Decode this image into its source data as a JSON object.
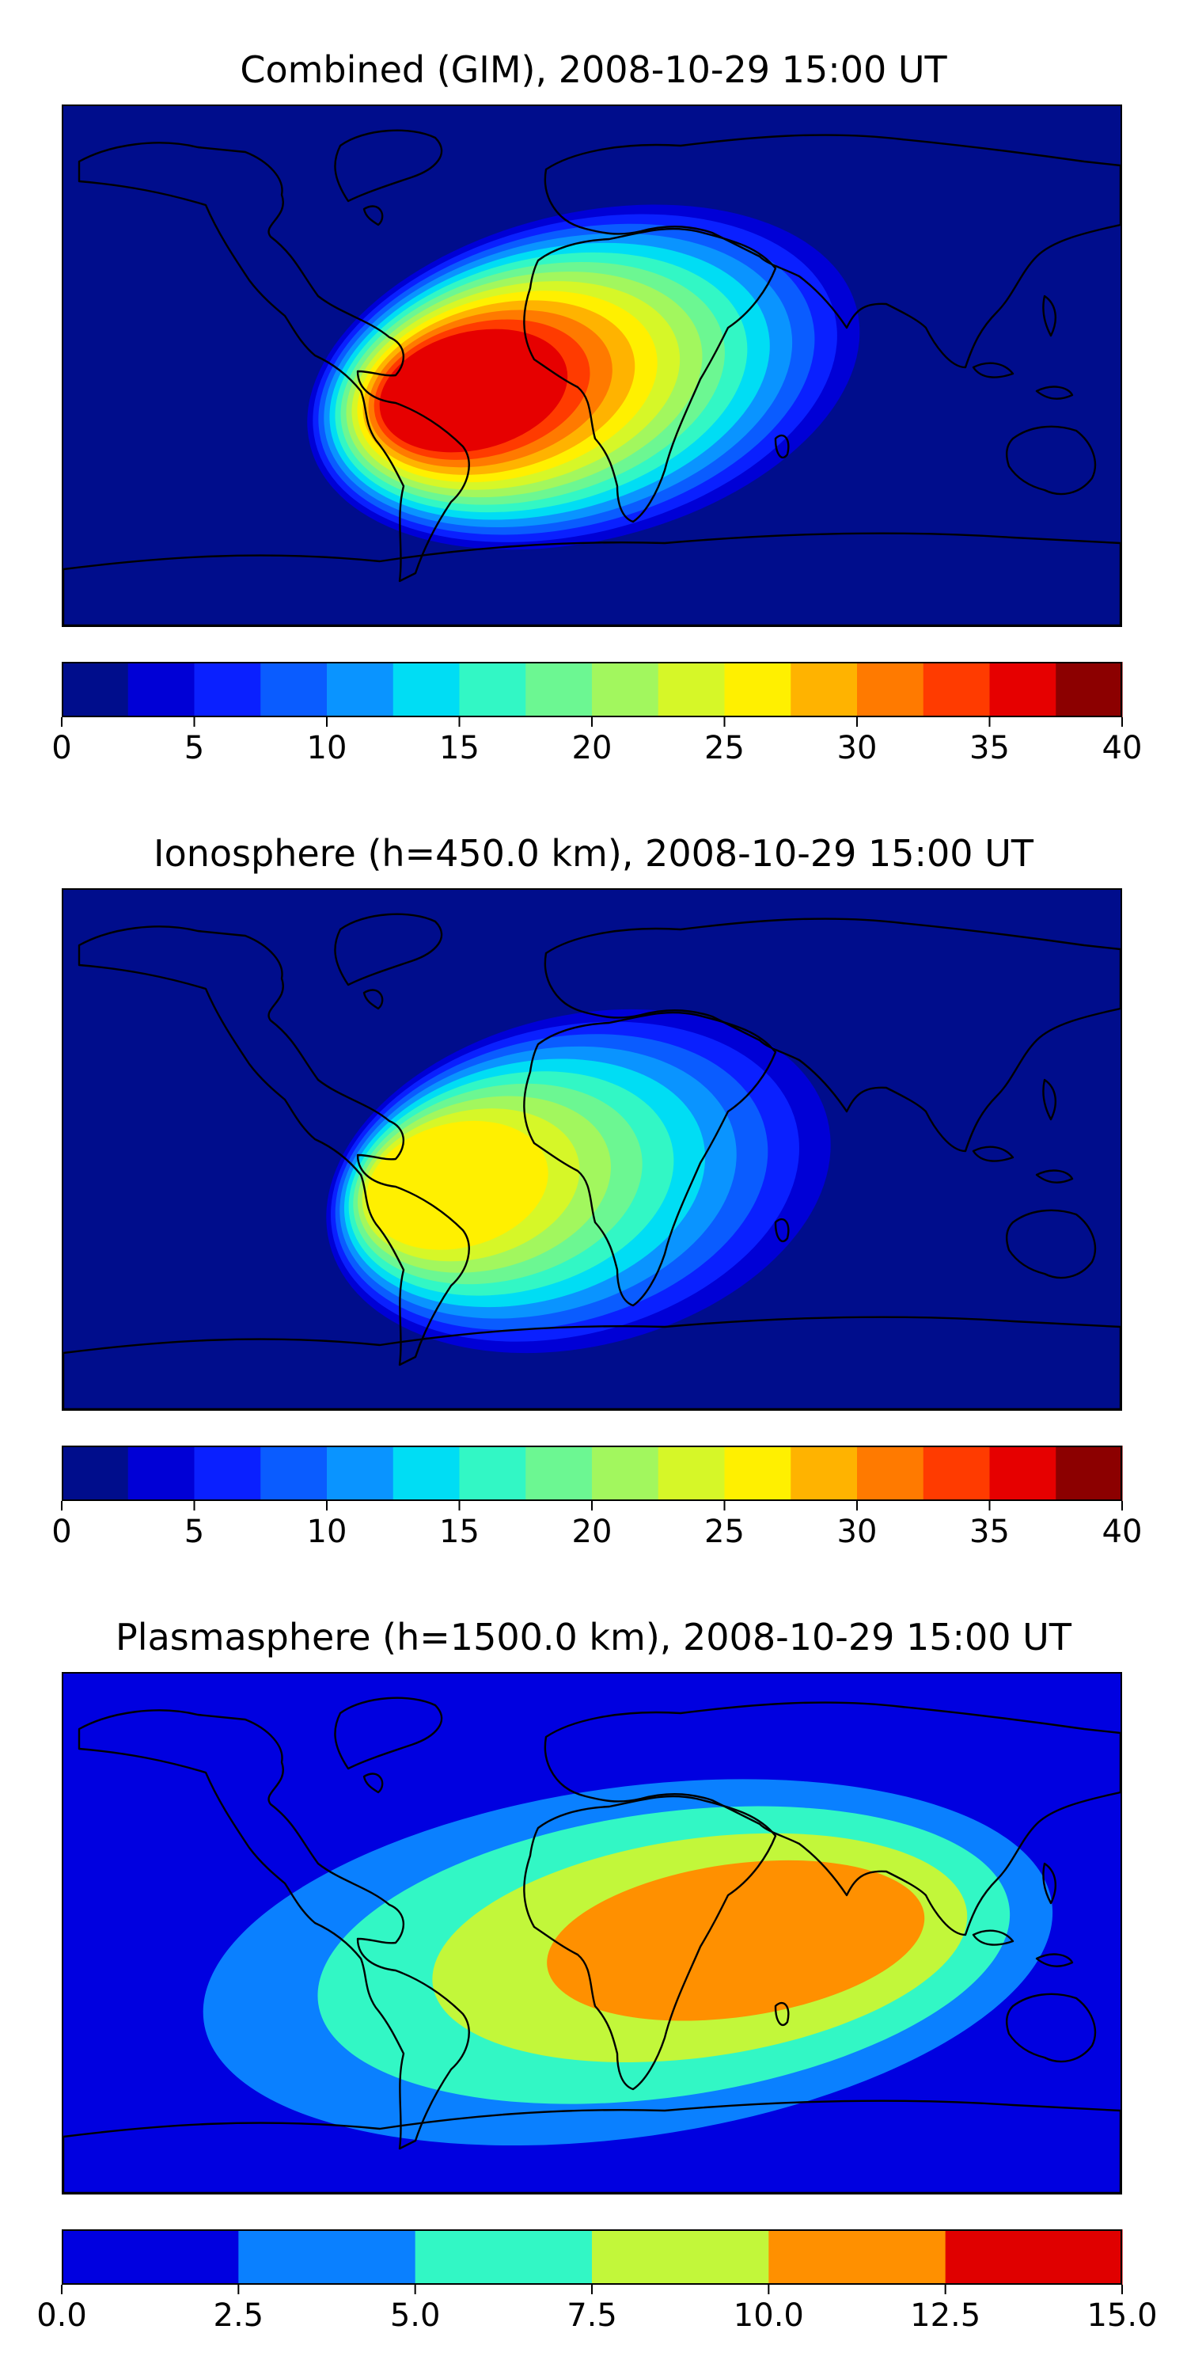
{
  "panels": [
    {
      "title": "Combined (GIM), 2008-10-29 15:00 UT",
      "levels": [
        0,
        2.5,
        5,
        7.5,
        10,
        12.5,
        15,
        17.5,
        20,
        22.5,
        25,
        27.5,
        30,
        32.5,
        35,
        37.5,
        40
      ],
      "colors": [
        "#000d8c",
        "#0000d6",
        "#0a20ff",
        "#0a5cff",
        "#0a94ff",
        "#00ddf4",
        "#32f7c5",
        "#6cf792",
        "#a2f75e",
        "#d6f728",
        "#fff000",
        "#ffb300",
        "#ff7a00",
        "#ff3b00",
        "#e60000",
        "#8c0000"
      ],
      "ticks": [
        "0",
        "5",
        "10",
        "15",
        "20",
        "25",
        "30",
        "35",
        "40"
      ],
      "tick_values": [
        0,
        5,
        10,
        15,
        20,
        25,
        30,
        35,
        40
      ],
      "peak": 36
    },
    {
      "title": "Ionosphere  (h=450.0 km), 2008-10-29 15:00 UT",
      "levels": [
        0,
        2.5,
        5,
        7.5,
        10,
        12.5,
        15,
        17.5,
        20,
        22.5,
        25,
        27.5,
        30,
        32.5,
        35,
        37.5,
        40
      ],
      "colors": [
        "#000d8c",
        "#0000d6",
        "#0a20ff",
        "#0a5cff",
        "#0a94ff",
        "#00ddf4",
        "#32f7c5",
        "#6cf792",
        "#a2f75e",
        "#d6f728",
        "#fff000",
        "#ffb300",
        "#ff7a00",
        "#ff3b00",
        "#e60000",
        "#8c0000"
      ],
      "ticks": [
        "0",
        "5",
        "10",
        "15",
        "20",
        "25",
        "30",
        "35",
        "40"
      ],
      "tick_values": [
        0,
        5,
        10,
        15,
        20,
        25,
        30,
        35,
        40
      ],
      "peak": 26
    },
    {
      "title": "Plasmasphere (h=1500.0 km), 2008-10-29 15:00 UT",
      "levels": [
        0,
        2.5,
        5,
        7.5,
        10,
        12.5,
        15
      ],
      "colors": [
        "#0000e0",
        "#0a80ff",
        "#32f7c5",
        "#c2f73a",
        "#ff9000",
        "#e00000"
      ],
      "ticks": [
        "0.0",
        "2.5",
        "5.0",
        "7.5",
        "10.0",
        "12.5",
        "15.0"
      ],
      "tick_values": [
        0,
        2.5,
        5,
        7.5,
        10,
        12.5,
        15
      ],
      "peak": 11
    }
  ]
}
